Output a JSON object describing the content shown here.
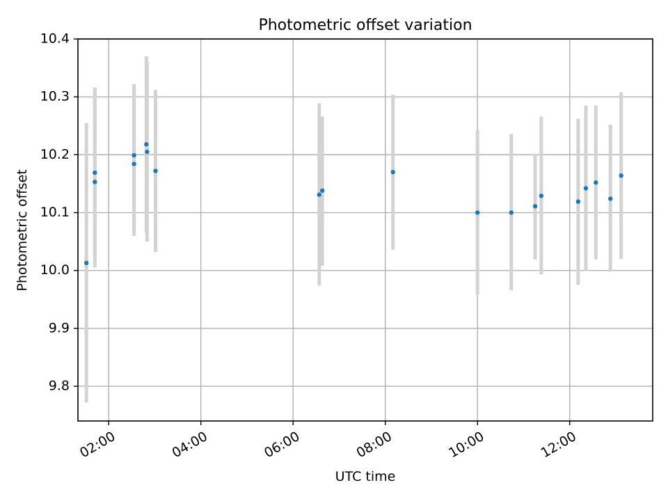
{
  "colors": {
    "point": "#1f77b4",
    "errorbar": "#d3d3d3",
    "grid": "#b0b0b0"
  },
  "chart_data": {
    "type": "scatter",
    "title": "Photometric offset variation",
    "xlabel": "UTC time",
    "ylabel": "Photometric offset",
    "x_unit": "time (HH:MM)",
    "xlim": [
      "01:20",
      "13:48"
    ],
    "ylim": [
      9.74,
      10.4
    ],
    "x_ticks": [
      "02:00",
      "04:00",
      "06:00",
      "08:00",
      "10:00",
      "12:00"
    ],
    "y_ticks": [
      9.8,
      9.9,
      10.0,
      10.1,
      10.2,
      10.3,
      10.4
    ],
    "y_tick_labels": [
      "9.8",
      "9.9",
      "10.0",
      "10.1",
      "10.2",
      "10.3",
      "10.4"
    ],
    "grid": true,
    "x_tick_rotation": "rotated 30 degrees",
    "series": [
      {
        "marker": "point",
        "error_bars": "vertical, light gray",
        "points": [
          {
            "x": "01:31",
            "y": 10.013,
            "ylow": 9.772,
            "yhigh": 10.255
          },
          {
            "x": "01:42",
            "y": 10.153,
            "ylow": 10.005,
            "yhigh": 10.316
          },
          {
            "x": "01:42",
            "y": 10.169,
            "ylow": 10.02,
            "yhigh": 10.316
          },
          {
            "x": "02:33",
            "y": 10.199,
            "ylow": 10.06,
            "yhigh": 10.322
          },
          {
            "x": "02:33",
            "y": 10.184,
            "ylow": 10.06,
            "yhigh": 10.31
          },
          {
            "x": "02:49",
            "y": 10.218,
            "ylow": 10.065,
            "yhigh": 10.37
          },
          {
            "x": "02:50",
            "y": 10.205,
            "ylow": 10.05,
            "yhigh": 10.36
          },
          {
            "x": "03:01",
            "y": 10.172,
            "ylow": 10.032,
            "yhigh": 10.312
          },
          {
            "x": "06:34",
            "y": 10.131,
            "ylow": 9.974,
            "yhigh": 10.289
          },
          {
            "x": "06:38",
            "y": 10.138,
            "ylow": 10.008,
            "yhigh": 10.266
          },
          {
            "x": "08:10",
            "y": 10.17,
            "ylow": 10.036,
            "yhigh": 10.304
          },
          {
            "x": "10:00",
            "y": 10.1,
            "ylow": 9.958,
            "yhigh": 10.243
          },
          {
            "x": "10:44",
            "y": 10.1,
            "ylow": 9.966,
            "yhigh": 10.236
          },
          {
            "x": "11:15",
            "y": 10.111,
            "ylow": 10.019,
            "yhigh": 10.202
          },
          {
            "x": "11:23",
            "y": 10.129,
            "ylow": 9.993,
            "yhigh": 10.266
          },
          {
            "x": "12:11",
            "y": 10.119,
            "ylow": 9.975,
            "yhigh": 10.262
          },
          {
            "x": "12:21",
            "y": 10.142,
            "ylow": 10.0,
            "yhigh": 10.285
          },
          {
            "x": "12:34",
            "y": 10.152,
            "ylow": 10.019,
            "yhigh": 10.285
          },
          {
            "x": "12:53",
            "y": 10.124,
            "ylow": 9.998,
            "yhigh": 10.252
          },
          {
            "x": "13:07",
            "y": 10.164,
            "ylow": 10.02,
            "yhigh": 10.308
          }
        ]
      }
    ]
  }
}
